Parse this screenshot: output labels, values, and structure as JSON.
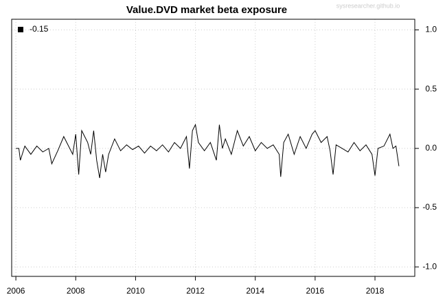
{
  "chart_data": {
    "type": "line",
    "title": "Value.DVD market beta exposure",
    "watermark": "sysresearcher.github.io",
    "x": [
      2006.0,
      2006.1,
      2006.15,
      2006.3,
      2006.5,
      2006.7,
      2006.9,
      2007.1,
      2007.2,
      2007.4,
      2007.6,
      2007.7,
      2007.9,
      2008.0,
      2008.1,
      2008.2,
      2008.4,
      2008.5,
      2008.6,
      2008.7,
      2008.8,
      2008.9,
      2009.0,
      2009.1,
      2009.3,
      2009.5,
      2009.7,
      2009.9,
      2010.1,
      2010.3,
      2010.5,
      2010.7,
      2010.9,
      2011.1,
      2011.3,
      2011.5,
      2011.7,
      2011.8,
      2011.9,
      2012.0,
      2012.1,
      2012.3,
      2012.5,
      2012.7,
      2012.8,
      2012.9,
      2013.0,
      2013.2,
      2013.4,
      2013.6,
      2013.8,
      2014.0,
      2014.2,
      2014.4,
      2014.6,
      2014.8,
      2014.85,
      2014.95,
      2015.1,
      2015.3,
      2015.5,
      2015.7,
      2015.9,
      2016.0,
      2016.2,
      2016.4,
      2016.5,
      2016.6,
      2016.7,
      2016.9,
      2017.1,
      2017.3,
      2017.5,
      2017.7,
      2017.9,
      2018.0,
      2018.1,
      2018.3,
      2018.5,
      2018.6,
      2018.7,
      2018.8
    ],
    "series": [
      {
        "name": "-0.15",
        "color": "#000000",
        "values": [
          0.0,
          0.0,
          -0.1,
          0.02,
          -0.05,
          0.02,
          -0.03,
          0.0,
          -0.13,
          -0.02,
          0.1,
          0.05,
          -0.05,
          0.12,
          -0.22,
          0.15,
          0.05,
          -0.05,
          0.15,
          -0.1,
          -0.25,
          -0.05,
          -0.2,
          -0.05,
          0.08,
          -0.02,
          0.03,
          -0.01,
          0.02,
          -0.04,
          0.02,
          -0.02,
          0.03,
          -0.03,
          0.05,
          0.0,
          0.1,
          -0.17,
          0.15,
          0.2,
          0.05,
          -0.02,
          0.05,
          -0.1,
          0.2,
          0.0,
          0.08,
          -0.05,
          0.15,
          0.02,
          0.1,
          -0.02,
          0.05,
          0.0,
          0.03,
          -0.05,
          -0.24,
          0.05,
          0.12,
          -0.05,
          0.1,
          0.0,
          0.12,
          0.15,
          0.05,
          0.1,
          -0.02,
          -0.22,
          0.03,
          0.0,
          -0.03,
          0.05,
          -0.02,
          0.03,
          -0.05,
          -0.23,
          0.0,
          0.02,
          0.12,
          0.0,
          0.02,
          -0.15
        ]
      }
    ],
    "xlim": [
      2005.86,
      2019.33
    ],
    "xticks": [
      2006,
      2008,
      2010,
      2012,
      2014,
      2016,
      2018
    ],
    "ylim": [
      -1.08,
      1.09
    ],
    "yticks": [
      {
        "value": -1,
        "label": "-1.0"
      },
      -0.5,
      {
        "value": 0,
        "label": "0.0"
      },
      0.5,
      {
        "value": 1,
        "label": "1.0"
      }
    ],
    "grid": true,
    "legend": "top-left"
  }
}
